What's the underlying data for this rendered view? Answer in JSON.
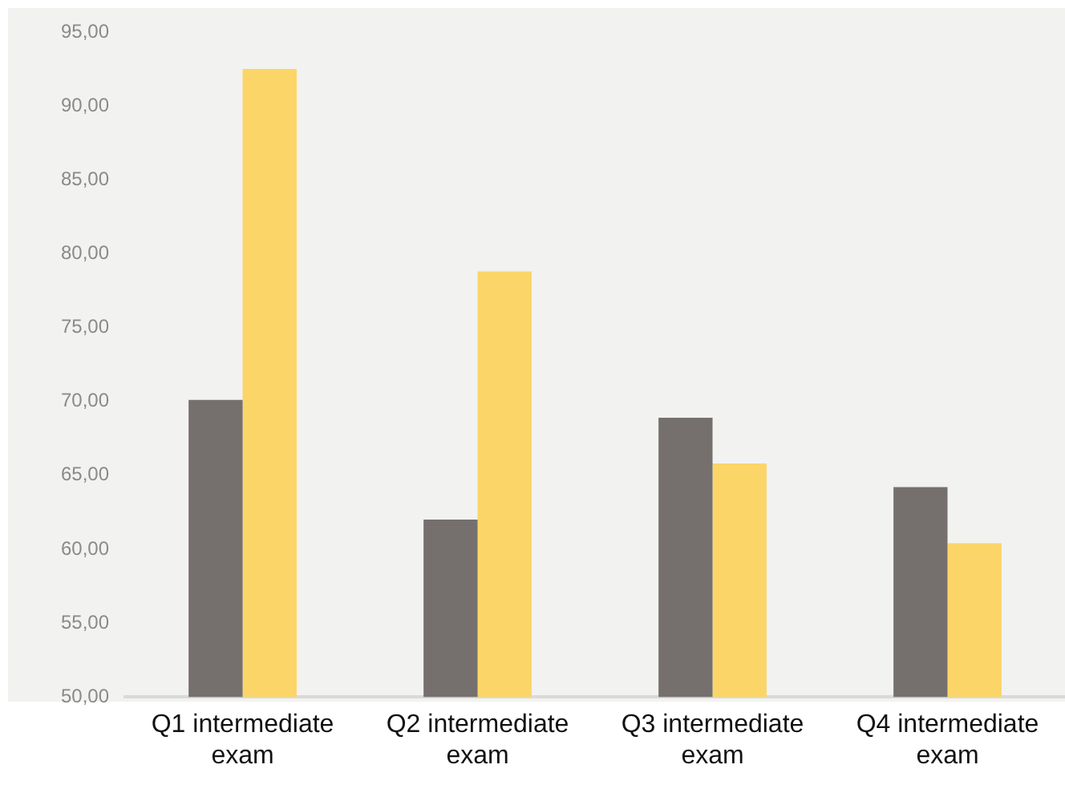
{
  "chart_data": {
    "type": "bar",
    "categories": [
      "Q1 intermediate exam",
      "Q2 intermediate exam",
      "Q3 intermediate exam",
      "Q4 intermediate exam"
    ],
    "series": [
      {
        "color": "#75706e",
        "values": [
          70.1,
          62.0,
          68.9,
          64.2
        ]
      },
      {
        "color": "#fbd567",
        "values": [
          92.5,
          78.8,
          65.8,
          60.4
        ]
      }
    ],
    "ylim": [
      50,
      95
    ],
    "yticks": [
      {
        "value": 50,
        "label": "50,00"
      },
      {
        "value": 55,
        "label": "55,00"
      },
      {
        "value": 60,
        "label": "60,00"
      },
      {
        "value": 65,
        "label": "65,00"
      },
      {
        "value": 70,
        "label": "70,00"
      },
      {
        "value": 75,
        "label": "75,00"
      },
      {
        "value": 80,
        "label": "80,00"
      },
      {
        "value": 85,
        "label": "85,00"
      },
      {
        "value": 90,
        "label": "90,00"
      },
      {
        "value": 95,
        "label": "95,00"
      }
    ],
    "grid": false,
    "legend": false
  }
}
